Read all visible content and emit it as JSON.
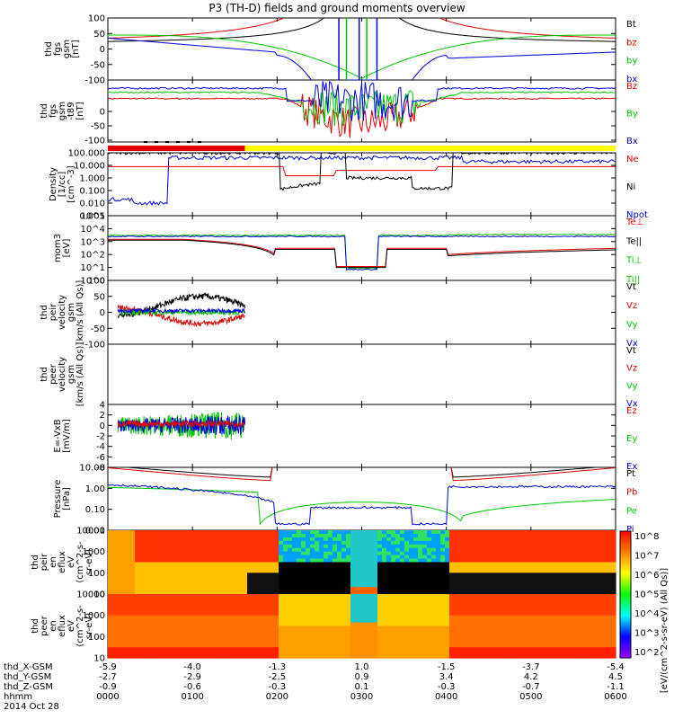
{
  "title": "P3 (TH-D) fields and ground moments overview",
  "colors": {
    "black": "#000000",
    "red": "#e00000",
    "green": "#00c800",
    "blue": "#0000e0",
    "yellow": "#ffff00"
  },
  "chart_data": {
    "type": "line",
    "panels": [
      {
        "id": "fgs-gsm",
        "ylabel": [
          "thd",
          "fgs",
          "gsm",
          "[nT]"
        ],
        "ylim": [
          -100,
          100
        ],
        "ticks": [
          "100",
          "50",
          "0",
          "-50",
          "-100"
        ],
        "log": false,
        "legend": [
          {
            "name": "Bt",
            "color": "black"
          },
          {
            "name": "bz",
            "color": "red"
          },
          {
            "name": "by",
            "color": "green"
          },
          {
            "name": "bx",
            "color": "blue"
          }
        ]
      },
      {
        "id": "fgs-gsm-t89",
        "ylabel": [
          "thd",
          "fgs",
          "gsm",
          "-t89",
          "[nT]"
        ],
        "ylim": [
          -125,
          25
        ],
        "ticks": [
          "0",
          "-50",
          "-100"
        ],
        "log": false,
        "legend": [
          {
            "name": "Bz",
            "color": "red"
          },
          {
            "name": "By",
            "color": "green"
          },
          {
            "name": "Bx",
            "color": "blue"
          }
        ]
      },
      {
        "id": "density",
        "ylabel": [
          "Density",
          "[1/cc]",
          "[cm^-3]"
        ],
        "ylim": [
          0.001,
          100
        ],
        "ticks": [
          "100.000",
          "10.000",
          "1.000",
          "0.100",
          "0.010",
          "0.001"
        ],
        "log": true,
        "legend": [
          {
            "name": "Ne",
            "color": "red"
          },
          {
            "name": "Ni",
            "color": "black"
          },
          {
            "name": "Npot",
            "color": "blue"
          }
        ]
      },
      {
        "id": "temperature",
        "ylabel": [
          "mom3",
          "[eV]"
        ],
        "ylim": [
          1,
          100000
        ],
        "ticks": [
          "10^5",
          "10^4",
          "10^3",
          "10^2",
          "10^1",
          "10^0"
        ],
        "log": true,
        "legend": [
          {
            "name": "Te⊥",
            "color": "red"
          },
          {
            "name": "Te||",
            "color": "black"
          },
          {
            "name": "Ti⊥",
            "color": "green"
          },
          {
            "name": "Ti||",
            "color": "green"
          }
        ]
      },
      {
        "id": "peir-velocity",
        "ylabel": [
          "thd",
          "peir",
          "velocity",
          "gsm",
          "[km/s (All Qs)]"
        ],
        "ylim": [
          -100,
          100
        ],
        "ticks": [
          "100",
          "50",
          "0",
          "-50",
          "-100"
        ],
        "log": false,
        "legend": [
          {
            "name": "Vt",
            "color": "black"
          },
          {
            "name": "Vz",
            "color": "red"
          },
          {
            "name": "Vy",
            "color": "green"
          },
          {
            "name": "Vx",
            "color": "blue"
          }
        ]
      },
      {
        "id": "peer-velocity",
        "ylabel": [
          "thd",
          "peer",
          "velocity",
          "gsm",
          "[km/s (All Qs)]"
        ],
        "ylim": [
          -100,
          100
        ],
        "ticks": [],
        "log": false,
        "legend": [
          {
            "name": "Vt",
            "color": "black"
          },
          {
            "name": "Vz",
            "color": "red"
          },
          {
            "name": "Vy",
            "color": "green"
          },
          {
            "name": "Vx",
            "color": "blue"
          }
        ]
      },
      {
        "id": "efield",
        "ylabel": [
          "E=-VxB",
          "[mV/m]"
        ],
        "ylim": [
          -8,
          4
        ],
        "ticks": [
          "4",
          "2",
          "0",
          "-2",
          "-4",
          "-6",
          "-8"
        ],
        "log": false,
        "legend": [
          {
            "name": "Ez",
            "color": "red"
          },
          {
            "name": "Ey",
            "color": "green"
          },
          {
            "name": "Ex",
            "color": "blue"
          }
        ]
      },
      {
        "id": "pressure",
        "ylabel": [
          "Pressure",
          "[nPa]"
        ],
        "ylim": [
          0.01,
          10
        ],
        "ticks": [
          "10.00",
          "1.00",
          "0.10",
          "0.01"
        ],
        "log": true,
        "legend": [
          {
            "name": "Pt",
            "color": "black"
          },
          {
            "name": "Pb",
            "color": "red"
          },
          {
            "name": "Pe",
            "color": "green"
          },
          {
            "name": "Pi",
            "color": "blue"
          }
        ]
      },
      {
        "id": "peir-spec",
        "ylabel": [
          "thd",
          "peir",
          "en",
          "eflux",
          "eV",
          "(cm^2-s-",
          "sr-eV)"
        ],
        "ylim": [
          10,
          10000
        ],
        "ticks": [
          "10000",
          "1000",
          "100",
          "10"
        ],
        "log": true,
        "legend": []
      },
      {
        "id": "peer-spec",
        "ylabel": [
          "thd",
          "peer",
          "en",
          "eflux",
          "eV",
          "(cm^2-s-",
          "sr-eV)"
        ],
        "ylim": [
          10,
          10000
        ],
        "ticks": [
          "10000",
          "1000",
          "100",
          "10"
        ],
        "log": true,
        "legend": []
      }
    ],
    "colorbar": {
      "label": "[eV/(cm^2-s-sr-eV) (All Qs)]",
      "ticks": [
        "10^8",
        "10^7",
        "10^6",
        "10^5",
        "10^4",
        "10^3",
        "10^2"
      ]
    },
    "ephemeris": {
      "rows": [
        {
          "label": "thd_X-GSM",
          "values": [
            "-5.9",
            "-4.0",
            "-1.3",
            "1.0",
            "-1.5",
            "-3.7",
            "-5.4"
          ]
        },
        {
          "label": "thd_Y-GSM",
          "values": [
            "-2.7",
            "-2.9",
            "-2.5",
            "0.9",
            "3.4",
            "4.2",
            "4.5"
          ]
        },
        {
          "label": "thd_Z-GSM",
          "values": [
            "-0.9",
            "-0.6",
            "-0.3",
            "0.1",
            "-0.3",
            "-0.7",
            "-1.1"
          ]
        },
        {
          "label": "hhmm",
          "values": [
            "0000",
            "0100",
            "0200",
            "0300",
            "0400",
            "0500",
            "0600"
          ]
        }
      ],
      "date": "2014 Oct 28"
    }
  }
}
